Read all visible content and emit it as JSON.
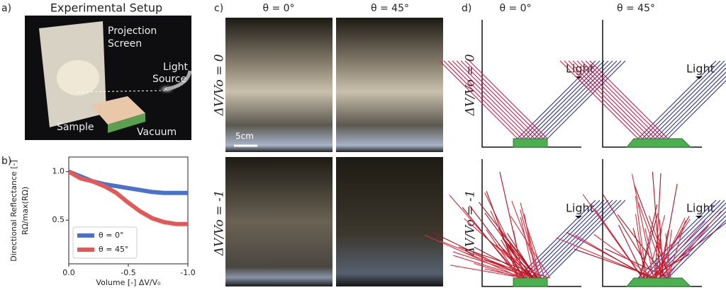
{
  "panel_a": {
    "label": "a)",
    "title": "Experimental Setup",
    "screen_label": [
      "Projection",
      "Screen"
    ],
    "source_label": [
      "Light",
      "Source"
    ],
    "sample_label": "Sample",
    "vacuum_label": "Vacuum"
  },
  "chart_data": {
    "type": "line",
    "label": "b)",
    "ylabel": [
      "Directional Reflectance [-]",
      "RΩ/max(RΩ)"
    ],
    "xlabel": "Volume [-]  ΔV/V₀",
    "x": [
      0,
      -0.1,
      -0.2,
      -0.3,
      -0.4,
      -0.5,
      -0.6,
      -0.7,
      -0.8,
      -0.9,
      -1.0
    ],
    "series": [
      {
        "name": "θ = 0°",
        "color": "#4a72c8",
        "values": [
          1.0,
          0.95,
          0.9,
          0.87,
          0.85,
          0.83,
          0.81,
          0.79,
          0.78,
          0.78,
          0.78
        ]
      },
      {
        "name": "θ = 45°",
        "color": "#e05a5a",
        "values": [
          1.0,
          0.93,
          0.9,
          0.85,
          0.78,
          0.68,
          0.59,
          0.52,
          0.48,
          0.46,
          0.46
        ]
      }
    ],
    "xlim": [
      0,
      -1
    ],
    "ylim": [
      0.05,
      1.15
    ],
    "xticks": [
      {
        "value": 0,
        "label": "0.0"
      },
      -0.5,
      {
        "value": -1,
        "label": "-1.0"
      }
    ],
    "yticks": [
      0.5,
      {
        "value": 1,
        "label": "1.0"
      }
    ],
    "legend": "lower left"
  },
  "panel_c": {
    "label": "c)",
    "columns": [
      "θ = 0°",
      "θ = 45°"
    ],
    "rows": [
      "ΔV/Vo = 0",
      "ΔV/Vo = -1"
    ],
    "scale_bar": "5cm"
  },
  "panel_d": {
    "label": "d)",
    "columns": [
      "θ = 0°",
      "θ = 45°"
    ],
    "rows": [
      "ΔV/Vo = 0",
      "ΔV/Vo = -1"
    ],
    "light_labels": [
      "Light",
      "Light",
      "Light",
      "Light"
    ]
  }
}
